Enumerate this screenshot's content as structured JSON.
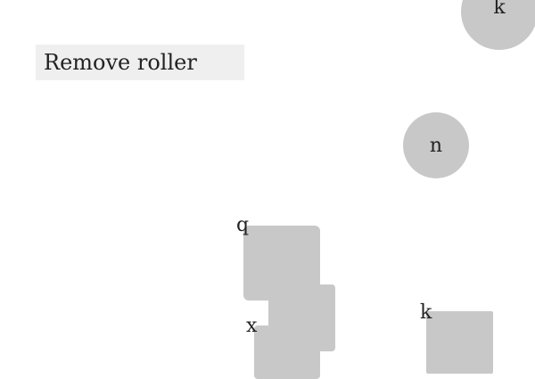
{
  "header": {
    "label": "Remove roller"
  },
  "circles": [
    {
      "label": "k"
    },
    {
      "label": "n"
    }
  ],
  "blocks": [
    {
      "label": "q"
    },
    {
      "label": "x"
    },
    {
      "label": "k"
    }
  ],
  "colors": {
    "background": "#ffffff",
    "header_bg": "#efefef",
    "shape_fill": "#c8c8c8",
    "text": "#222222"
  }
}
